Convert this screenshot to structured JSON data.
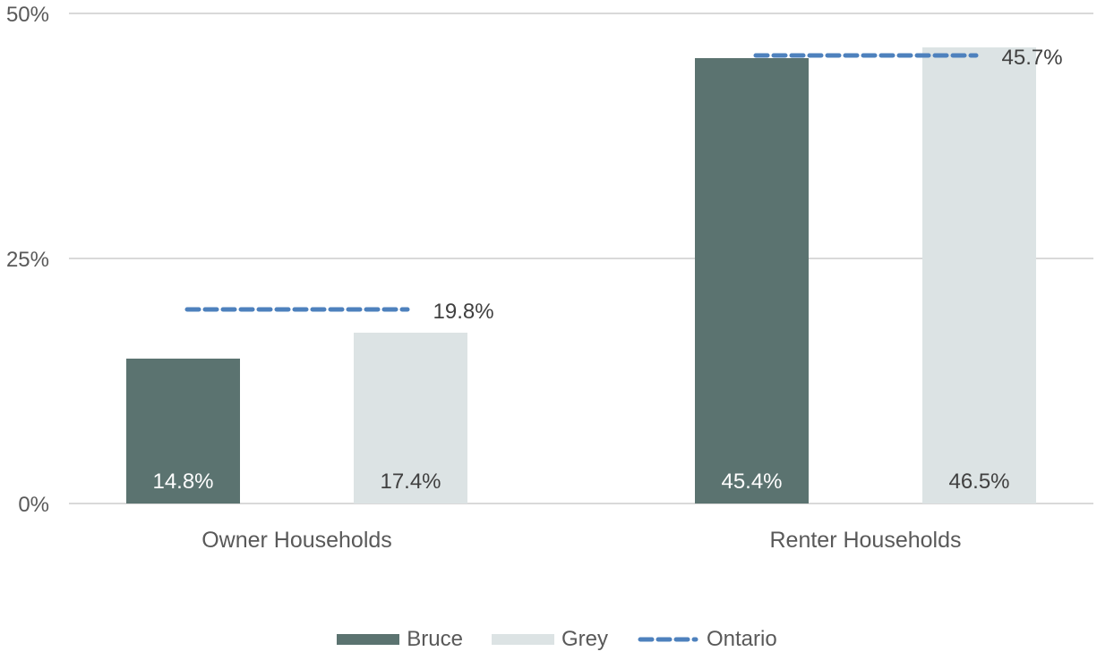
{
  "chart_data": {
    "type": "bar",
    "title": "",
    "categories": [
      "Owner Households",
      "Renter Households"
    ],
    "series": [
      {
        "name": "Bruce",
        "values": [
          14.8,
          45.4
        ],
        "labels": [
          "14.8%",
          "45.4%"
        ]
      },
      {
        "name": "Grey",
        "values": [
          17.4,
          46.5
        ],
        "labels": [
          "17.4%",
          "46.5%"
        ]
      }
    ],
    "reference_series": {
      "name": "Ontario",
      "style": "dashed",
      "values": [
        19.8,
        45.7
      ],
      "labels": [
        "19.8%",
        "45.7%"
      ]
    },
    "yticks": [
      {
        "value": 0,
        "label": "0%"
      },
      {
        "value": 25,
        "label": "25%"
      },
      {
        "value": 50,
        "label": "50%"
      }
    ],
    "ylim": [
      0,
      50
    ],
    "grid": true,
    "legend_position": "bottom",
    "legend": [
      "Bruce",
      "Grey",
      "Ontario"
    ]
  },
  "colors": {
    "bruce": "#5b7370",
    "grey": "#dce3e4",
    "ontario": "#4e81bd",
    "gridline": "#d9d9d9",
    "axis_text": "#595959",
    "label_on_dark": "#ffffff",
    "label_on_light": "#404040"
  }
}
